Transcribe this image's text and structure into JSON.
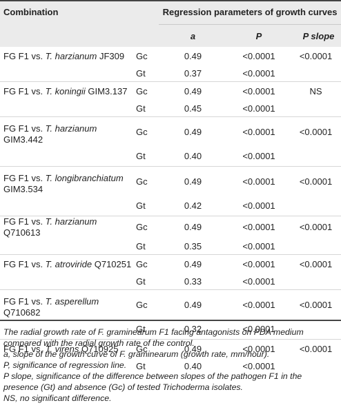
{
  "table": {
    "header": {
      "combination": "Combination",
      "regression": "Regression parameters of growth curves",
      "col_a": "a",
      "col_p": "P",
      "col_pslope": "P slope"
    },
    "rows": [
      {
        "pre": "FG F1 vs. ",
        "species": "T. harzianum",
        "post": " JF309",
        "gc": {
          "type": "Gc",
          "a": "0.49",
          "p": "<0.0001",
          "pslope": "<0.0001"
        },
        "gt": {
          "type": "Gt",
          "a": "0.37",
          "p": "<0.0001"
        }
      },
      {
        "pre": "FG F1 vs. ",
        "species": "T. koningii",
        "post": " GIM3.137",
        "gc": {
          "type": "Gc",
          "a": "0.49",
          "p": "<0.0001",
          "pslope": "NS"
        },
        "gt": {
          "type": "Gt",
          "a": "0.45",
          "p": "<0.0001"
        }
      },
      {
        "pre": "FG F1 vs. ",
        "species": "T. harzianum",
        "post": " GIM3.442",
        "gc": {
          "type": "Gc",
          "a": "0.49",
          "p": "<0.0001",
          "pslope": "<0.0001"
        },
        "gt": {
          "type": "Gt",
          "a": "0.40",
          "p": "<0.0001"
        }
      },
      {
        "pre": "FG F1 vs. ",
        "species": "T. longibranchiatum",
        "post": " GIM3.534",
        "gc": {
          "type": "Gc",
          "a": "0.49",
          "p": "<0.0001",
          "pslope": "<0.0001"
        },
        "gt": {
          "type": "Gt",
          "a": "0.42",
          "p": "<0.0001"
        }
      },
      {
        "pre": "FG F1 vs. ",
        "species": "T. harzianum",
        "post": " Q710613",
        "gc": {
          "type": "Gc",
          "a": "0.49",
          "p": "<0.0001",
          "pslope": "<0.0001"
        },
        "gt": {
          "type": "Gt",
          "a": "0.35",
          "p": "<0.0001"
        }
      },
      {
        "pre": "FG F1 vs. ",
        "species": "T. atroviride",
        "post": " Q710251",
        "gc": {
          "type": "Gc",
          "a": "0.49",
          "p": "<0.0001",
          "pslope": "<0.0001"
        },
        "gt": {
          "type": "Gt",
          "a": "0.33",
          "p": "<0.0001"
        }
      },
      {
        "pre": "FG F1 vs. ",
        "species": "T. asperellum",
        "post": " Q710682",
        "gc": {
          "type": "Gc",
          "a": "0.49",
          "p": "<0.0001",
          "pslope": "<0.0001"
        },
        "gt": {
          "type": "Gt",
          "a": "0.32",
          "p": "<0.0001"
        }
      },
      {
        "pre": "FG F1 vs. ",
        "species": "T. virens",
        "post": " Q710925",
        "gc": {
          "type": "Gc",
          "a": "0.49",
          "p": "<0.0001",
          "pslope": "<0.0001"
        },
        "gt": {
          "type": "Gt",
          "a": "0.40",
          "p": "<0.0001"
        }
      }
    ]
  },
  "notes": [
    "The radial growth rate of F. graminearum F1 facing antagonists on PDA medium compared with the radial growth rate of the control.",
    "a, slope of the growth curve of F. graminearum (growth rate, mm/hour).",
    "P, significance of regression line.",
    "P slope, significance of the difference between slopes of the pathogen F1 in the presence (Gt) and absence (Gc) of tested Trichoderma isolates.",
    "NS, no significant difference."
  ]
}
